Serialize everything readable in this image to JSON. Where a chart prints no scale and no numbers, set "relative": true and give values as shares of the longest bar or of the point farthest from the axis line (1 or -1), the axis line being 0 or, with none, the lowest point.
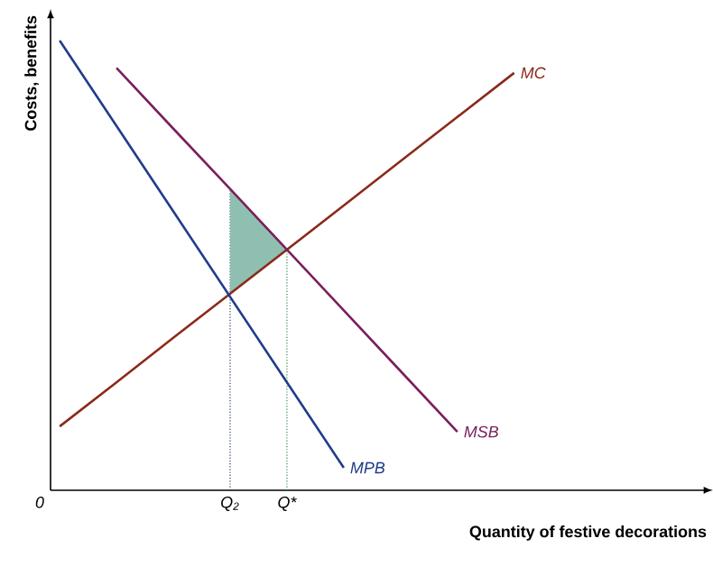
{
  "chart_data": {
    "type": "line",
    "relative": true,
    "xlabel": "Quantity of festive decorations",
    "ylabel": "Costs, benefits",
    "categories": [
      null,
      null,
      null,
      "Q$_{2}$",
      "Q*",
      null,
      null,
      null,
      null,
      null,
      null,
      null
    ],
    "annotations": [
      "0"
    ],
    "ref_lines": [
      {
        "axis": "x",
        "value": "Q$_{2}$",
        "color": "#1f3d6a",
        "line_style": "dotted"
      },
      {
        "axis": "x",
        "value": "Q*",
        "color": "#2a8a4a",
        "line_style": "dotted"
      }
    ],
    "series": [
      {
        "name": "MC",
        "color": "#8b2a1a",
        "values": [
          0.142,
          0.24,
          0.339,
          0.437,
          0.535,
          0.633,
          0.732,
          0.83,
          0.928,
          null,
          null,
          null
        ],
        "lower": [
          null,
          null,
          null,
          0.437,
          0.535,
          null,
          null,
          null,
          null,
          null,
          null,
          null
        ],
        "upper": [
          null,
          null,
          null,
          0.67,
          0.535,
          null,
          null,
          null,
          null,
          null,
          null,
          null
        ]
      },
      {
        "name": "MSB",
        "color": "#7a1f5c",
        "values": [
          null,
          0.939,
          0.804,
          0.67,
          0.535,
          0.4,
          0.265,
          0.13,
          null,
          null,
          null,
          null
        ]
      },
      {
        "name": "MPB",
        "color": "#1f3d8a",
        "values": [
          1.0,
          0.81,
          0.62,
          0.43,
          0.24,
          0.05,
          null,
          null,
          null,
          null,
          null,
          null
        ]
      }
    ]
  }
}
